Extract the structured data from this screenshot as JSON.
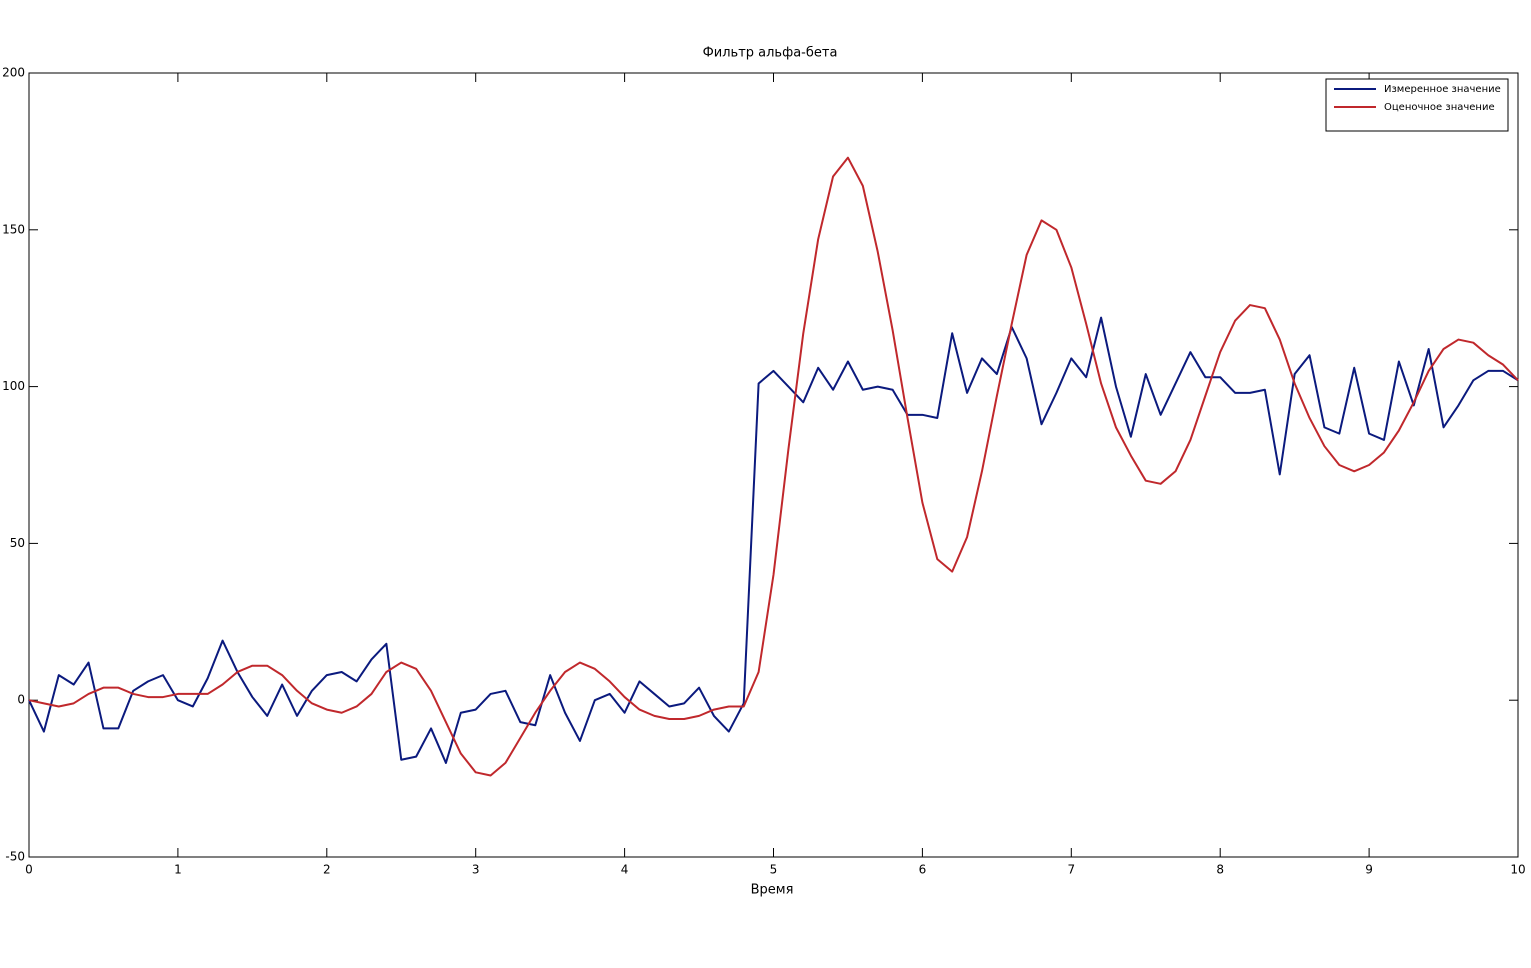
{
  "chart_data": {
    "type": "line",
    "title": "Фильтр альфа-бета",
    "x_label": "Время",
    "x": [
      0,
      0.1,
      0.2,
      0.3,
      0.4,
      0.5,
      0.6,
      0.7,
      0.8,
      0.9,
      1,
      1.1,
      1.2,
      1.3,
      1.4,
      1.5,
      1.6,
      1.7,
      1.8,
      1.9,
      2,
      2.1,
      2.2,
      2.3,
      2.4,
      2.5,
      2.6,
      2.7,
      2.8,
      2.9,
      3,
      3.1,
      3.2,
      3.3,
      3.4,
      3.5,
      3.6,
      3.7,
      3.8,
      3.9,
      4,
      4.1,
      4.2,
      4.3,
      4.4,
      4.5,
      4.6,
      4.7,
      4.8,
      4.9,
      5,
      5.1,
      5.2,
      5.3,
      5.4,
      5.5,
      5.6,
      5.7,
      5.8,
      5.9,
      6,
      6.1,
      6.2,
      6.3,
      6.4,
      6.5,
      6.6,
      6.7,
      6.8,
      6.9,
      7,
      7.1,
      7.2,
      7.3,
      7.4,
      7.5,
      7.6,
      7.7,
      7.8,
      7.9,
      8,
      8.1,
      8.2,
      8.3,
      8.4,
      8.5,
      8.6,
      8.7,
      8.8,
      8.9,
      9,
      9.1,
      9.2,
      9.3,
      9.4,
      9.5,
      9.6,
      9.7,
      9.8,
      9.9,
      10
    ],
    "series": [
      {
        "name": "Измеренное значение",
        "color": "#0b1a7e",
        "values": [
          0,
          -10,
          8,
          5,
          12,
          -9,
          -9,
          3,
          6,
          8,
          0,
          -2,
          7,
          19,
          9,
          1,
          -5,
          5,
          -5,
          3,
          8,
          9,
          6,
          13,
          18,
          -19,
          -18,
          -9,
          -20,
          -4,
          -3,
          2,
          3,
          -7,
          -8,
          8,
          -4,
          -13,
          0,
          2,
          -4,
          6,
          2,
          -2,
          -1,
          4,
          -5,
          -10,
          -1,
          101,
          105,
          100,
          95,
          106,
          99,
          108,
          99,
          100,
          99,
          91,
          91,
          90,
          117,
          98,
          109,
          104,
          119,
          109,
          88,
          98,
          109,
          103,
          122,
          100,
          84,
          104,
          91,
          101,
          111,
          103,
          103,
          98,
          98,
          99,
          72,
          104,
          110,
          87,
          85,
          106,
          85,
          83,
          108,
          94,
          112,
          87,
          94,
          102,
          105,
          105,
          102
        ]
      },
      {
        "name": "Оценочное значение",
        "color": "#c0282c",
        "values": [
          0,
          -1,
          -2,
          -1,
          2,
          4,
          4,
          2,
          1,
          1,
          2,
          2,
          2,
          5,
          9,
          11,
          11,
          8,
          3,
          -1,
          -3,
          -4,
          -2,
          2,
          9,
          12,
          10,
          3,
          -7,
          -17,
          -23,
          -24,
          -20,
          -12,
          -4,
          3,
          9,
          12,
          10,
          6,
          1,
          -3,
          -5,
          -6,
          -6,
          -5,
          -3,
          -2,
          -2,
          9,
          40,
          80,
          117,
          147,
          167,
          173,
          164,
          143,
          118,
          90,
          63,
          45,
          41,
          52,
          73,
          97,
          120,
          142,
          153,
          150,
          138,
          120,
          101,
          87,
          78,
          70,
          69,
          73,
          83,
          97,
          111,
          121,
          126,
          125,
          115,
          101,
          90,
          81,
          75,
          73,
          75,
          79,
          86,
          95,
          105,
          112,
          115,
          114,
          110,
          107,
          102
        ]
      }
    ],
    "xlim": [
      0,
      10
    ],
    "xticks": [
      0,
      1,
      2,
      3,
      4,
      5,
      6,
      7,
      8,
      9,
      10
    ],
    "ylim": [
      -50,
      200
    ],
    "yticks": [
      -50,
      0,
      50,
      100,
      150,
      200
    ],
    "legend": "northeast"
  }
}
